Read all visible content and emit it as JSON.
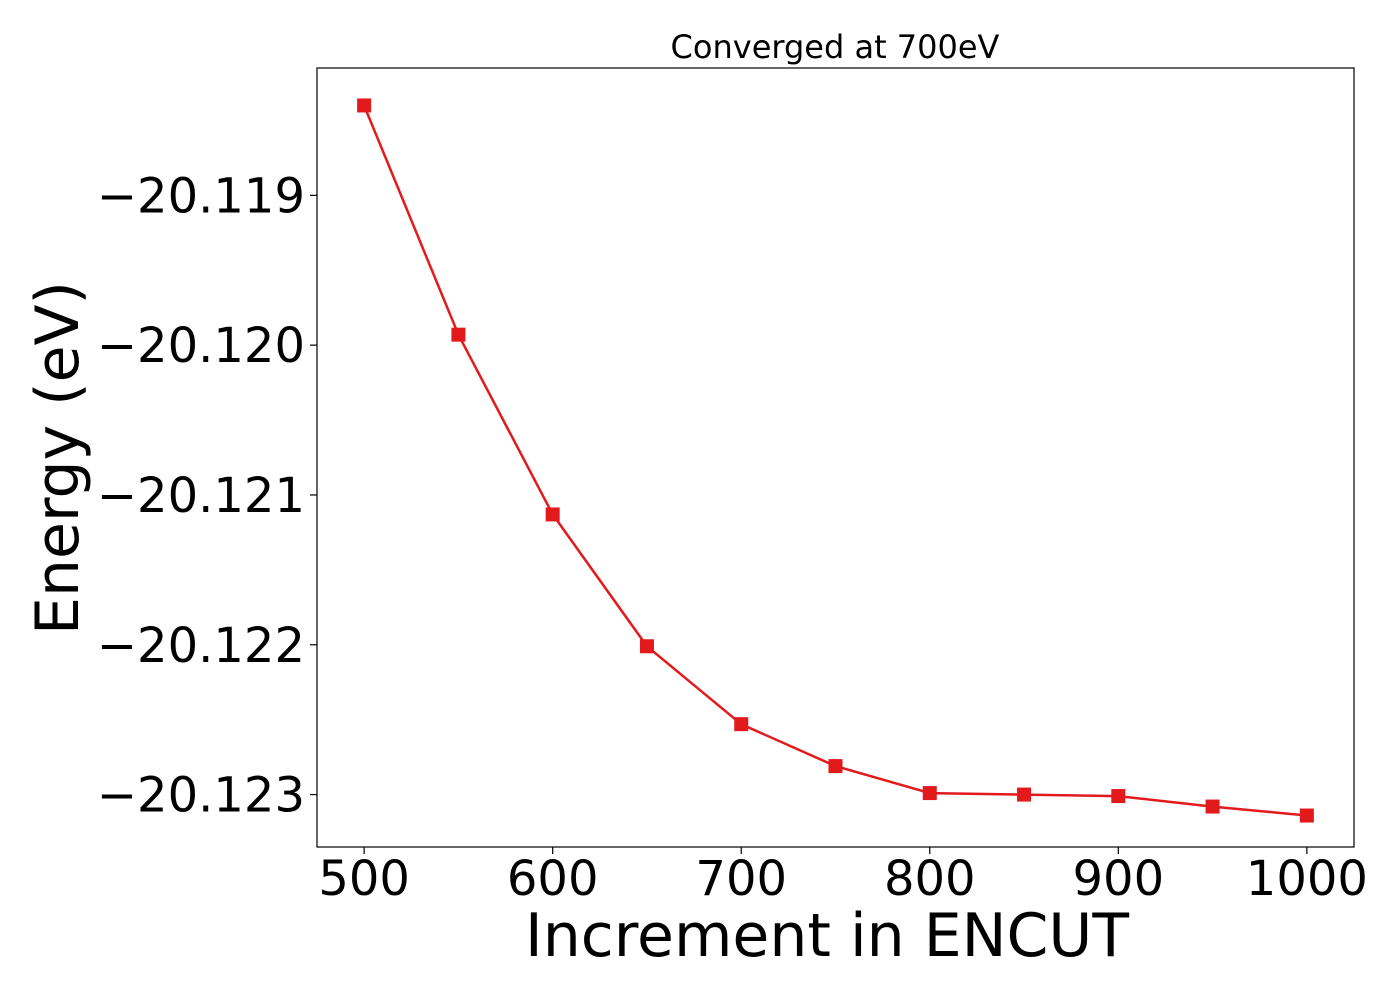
{
  "chart_data": {
    "type": "line",
    "title": "Converged at 700eV",
    "xlabel": "Increment in ENCUT",
    "ylabel": "Energy (eV)",
    "xlim": [
      475,
      1025
    ],
    "ylim": [
      -20.12335,
      -20.11815
    ],
    "x_ticks": [
      500,
      600,
      700,
      800,
      900,
      1000
    ],
    "x_tick_labels": [
      "500",
      "600",
      "700",
      "800",
      "900",
      "1000"
    ],
    "y_ticks": [
      -20.119,
      -20.12,
      -20.121,
      -20.122,
      -20.123
    ],
    "y_tick_labels": [
      "−20.119",
      "−20.120",
      "−20.121",
      "−20.122",
      "−20.123"
    ],
    "grid": false,
    "legend": "none",
    "series": [
      {
        "color": "#e31a1c",
        "marker": "square",
        "x": [
          500,
          550,
          600,
          650,
          700,
          750,
          800,
          850,
          900,
          950,
          1000
        ],
        "y": [
          -20.1184,
          -20.11993,
          -20.12113,
          -20.12201,
          -20.12253,
          -20.12281,
          -20.12299,
          -20.123,
          -20.12301,
          -20.12308,
          -20.12314
        ]
      }
    ]
  }
}
